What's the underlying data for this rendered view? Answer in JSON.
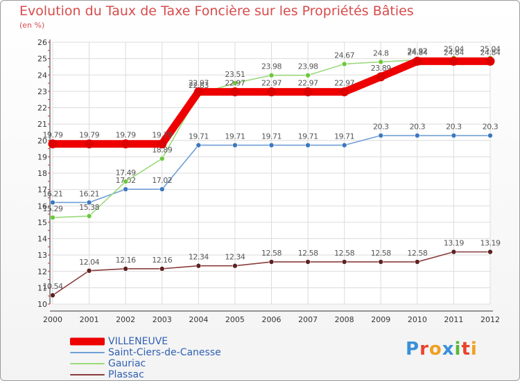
{
  "chart_data": {
    "type": "line",
    "title": "Evolution du Taux de Taxe Foncière sur les Propriétés Bâties",
    "ylabel": "(en %)",
    "xlabel": "",
    "categories": [
      "2000",
      "2001",
      "2002",
      "2003",
      "2004",
      "2005",
      "2006",
      "2007",
      "2008",
      "2009",
      "2010",
      "2011",
      "2012"
    ],
    "ylim": [
      10,
      26
    ],
    "yticks": [
      "10",
      "11",
      "12",
      "13",
      "14",
      "15",
      "16",
      "17",
      "18",
      "19",
      "20",
      "21",
      "22",
      "23",
      "24",
      "25",
      "26"
    ],
    "grid": true,
    "legend_position": "bottom-left",
    "series": [
      {
        "name": "Saint-Ciers-de-Canesse",
        "color": "#6f9fd4",
        "marker_color": "#3c78c0",
        "values": [
          16.21,
          16.21,
          17.02,
          17.02,
          19.71,
          19.71,
          19.71,
          19.71,
          19.71,
          20.3,
          20.3,
          20.3,
          20.3
        ],
        "labels": [
          "16.21",
          "16.21",
          "17.02",
          "17.02",
          "19.71",
          "19.71",
          "19.71",
          "19.71",
          "19.71",
          "20.3",
          "20.3",
          "20.3",
          "20.3"
        ]
      },
      {
        "name": "Gauriac",
        "color": "#99d97a",
        "marker_color": "#6cc83c",
        "values": [
          15.29,
          15.38,
          17.49,
          18.89,
          22.83,
          23.51,
          23.98,
          23.98,
          24.67,
          24.8,
          24.92,
          25.04,
          25.04
        ],
        "labels": [
          "15.29",
          "15.38",
          "17.49",
          "18.89",
          "22.83",
          "23.51",
          "23.98",
          "23.98",
          "24.67",
          "24.8",
          "24.92",
          "25.04",
          "25.04"
        ]
      },
      {
        "name": "Plassac",
        "color": "#8a3a3a",
        "marker_color": "#5e2222",
        "values": [
          10.54,
          12.04,
          12.16,
          12.16,
          12.34,
          12.34,
          12.58,
          12.58,
          12.58,
          12.58,
          12.58,
          13.19,
          13.19
        ],
        "labels": [
          "10.54",
          "12.04",
          "12.16",
          "12.16",
          "12.34",
          "12.34",
          "12.58",
          "12.58",
          "12.58",
          "12.58",
          "12.58",
          "13.19",
          "13.19"
        ]
      },
      {
        "name": "VILLENEUVE",
        "color": "#ee0000",
        "marker_color": "#dd0000",
        "thick": true,
        "values": [
          19.79,
          19.79,
          19.79,
          19.79,
          22.97,
          22.97,
          22.97,
          22.97,
          22.97,
          23.89,
          24.84,
          24.84,
          24.84
        ],
        "labels": [
          "19.79",
          "19.79",
          "19.79",
          "19.79",
          "22.97",
          "22.97",
          "22.97",
          "22.97",
          "22.97",
          "23.89",
          "24.84",
          "24.84",
          "24.84"
        ]
      }
    ]
  },
  "legend": [
    {
      "name": "VILLENEUVE",
      "color": "#ee0000",
      "thick": true
    },
    {
      "name": "Saint-Ciers-de-Canesse",
      "color": "#6f9fd4",
      "thick": false
    },
    {
      "name": "Gauriac",
      "color": "#99d97a",
      "thick": false
    },
    {
      "name": "Plassac",
      "color": "#8a3a3a",
      "thick": false
    }
  ],
  "logo": {
    "text": "Proxiti",
    "letter_colors": [
      "#3a8fd9",
      "#e8442c",
      "#f0a020",
      "#3a8fd9",
      "#57b83a",
      "#e8442c",
      "#f0a020"
    ]
  }
}
